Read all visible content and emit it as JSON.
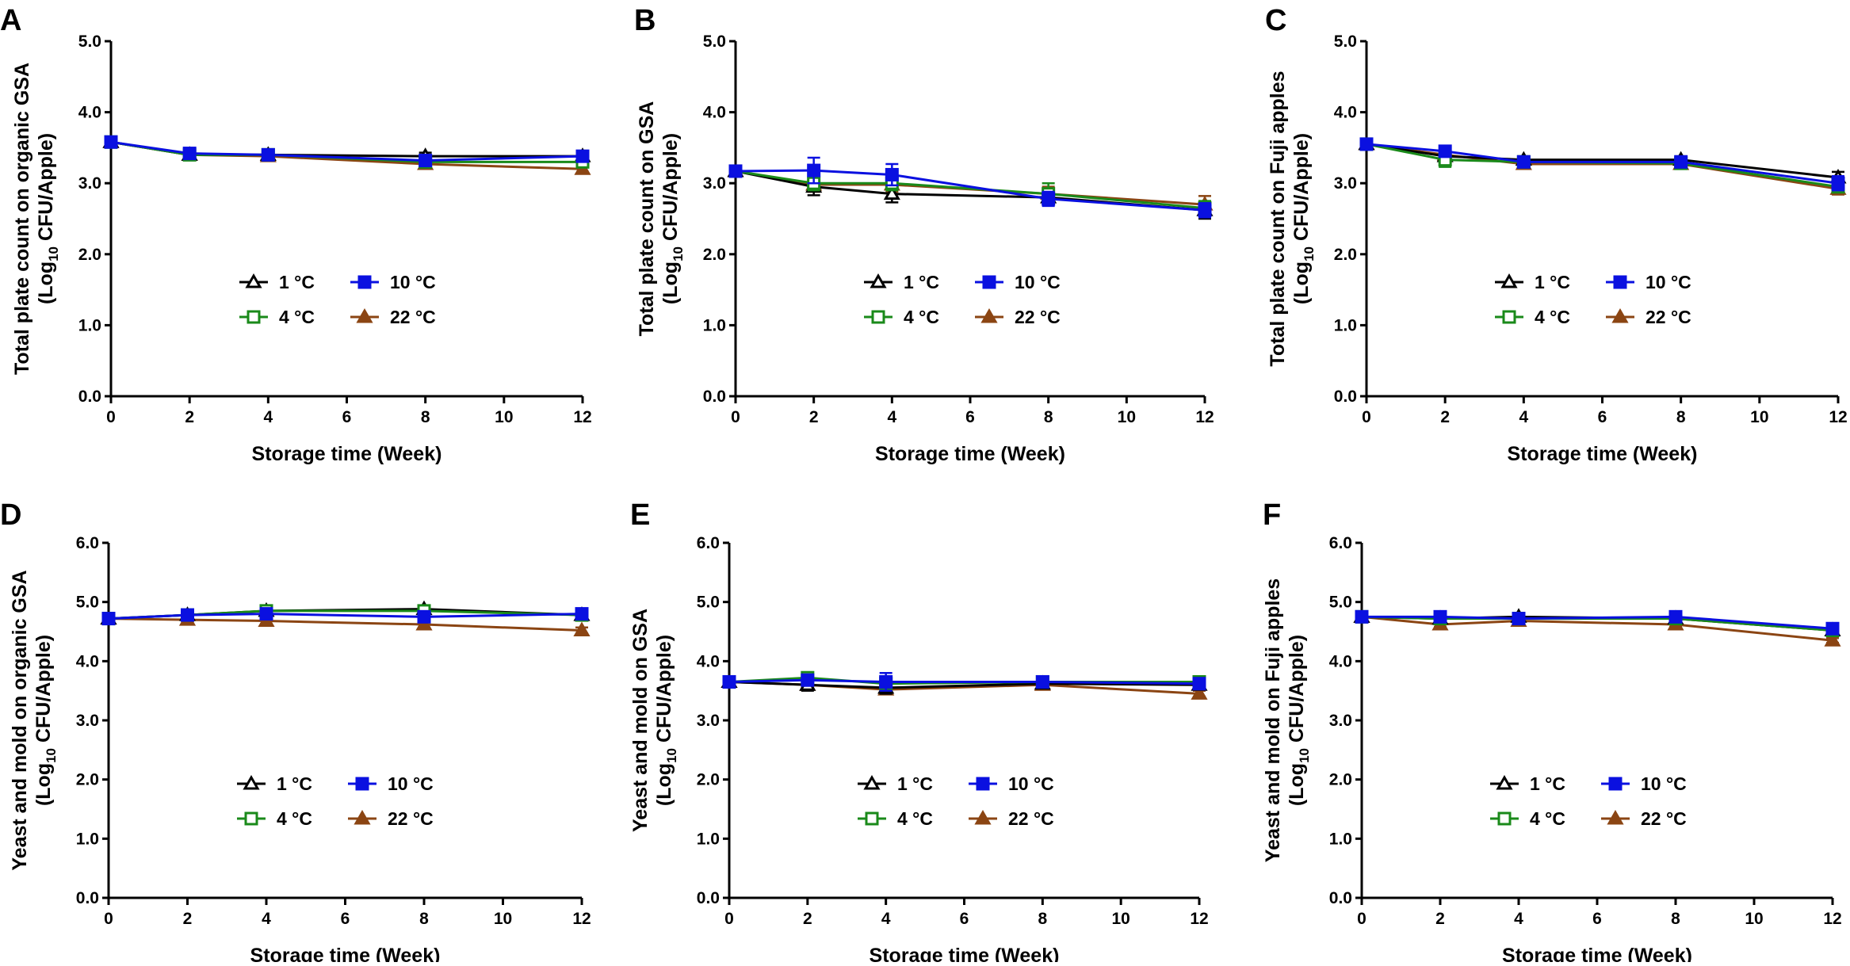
{
  "figure": {
    "colors": {
      "1 °C": "#000000",
      "4 °C": "#1a8a1a",
      "10 °C": "#0a10e0",
      "22 °C": "#8b4513"
    },
    "markers": {
      "1 °C": "triangle-open",
      "4 °C": "square-open",
      "10 °C": "square-filled",
      "22 °C": "triangle-filled"
    }
  },
  "chart_data": [
    {
      "panel": "A",
      "type": "line",
      "title": "",
      "xlabel": "Storage time (Week)",
      "ylabel_line1": "Total plate count on organic GSA",
      "ylabel_line2": "(Log",
      "ylabel_sub": "10",
      "ylabel_line2_rest": " CFU/Apple)",
      "x": [
        0,
        2,
        4,
        8,
        12
      ],
      "xticks": [
        "0",
        "2",
        "4",
        "6",
        "8",
        "10",
        "12"
      ],
      "xlim": [
        0,
        12
      ],
      "ylim": [
        0,
        5
      ],
      "yticks": [
        "0.0",
        "1.0",
        "2.0",
        "3.0",
        "4.0",
        "5.0"
      ],
      "legend": [
        "1 °C",
        "10 °C",
        "4 °C",
        "22 °C"
      ],
      "series": [
        {
          "name": "1 °C",
          "values": [
            3.58,
            3.4,
            3.4,
            3.38,
            3.38
          ],
          "err": [
            0.05,
            0.05,
            0.05,
            0.05,
            0.04
          ]
        },
        {
          "name": "4 °C",
          "values": [
            3.58,
            3.4,
            3.4,
            3.3,
            3.3
          ],
          "err": [
            0.05,
            0.05,
            0.05,
            0.05,
            0.05
          ]
        },
        {
          "name": "10 °C",
          "values": [
            3.58,
            3.42,
            3.4,
            3.32,
            3.38
          ],
          "err": [
            0.05,
            0.05,
            0.05,
            0.05,
            0.05
          ]
        },
        {
          "name": "22 °C",
          "values": [
            3.58,
            3.4,
            3.38,
            3.27,
            3.2
          ],
          "err": [
            0.05,
            0.05,
            0.05,
            0.05,
            0.05
          ]
        }
      ]
    },
    {
      "panel": "B",
      "type": "line",
      "title": "",
      "xlabel": "Storage time (Week)",
      "ylabel_line1": "Total plate count on GSA",
      "ylabel_line2": "(Log",
      "ylabel_sub": "10",
      "ylabel_line2_rest": " CFU/Apple)",
      "x": [
        0,
        2,
        4,
        8,
        12
      ],
      "xticks": [
        "0",
        "2",
        "4",
        "6",
        "8",
        "10",
        "12"
      ],
      "xlim": [
        0,
        12
      ],
      "ylim": [
        0,
        5
      ],
      "yticks": [
        "0.0",
        "1.0",
        "2.0",
        "3.0",
        "4.0",
        "5.0"
      ],
      "legend": [
        "1 °C",
        "10 °C",
        "4 °C",
        "22 °C"
      ],
      "series": [
        {
          "name": "1 °C",
          "values": [
            3.17,
            2.95,
            2.85,
            2.8,
            2.62
          ],
          "err": [
            0.05,
            0.12,
            0.12,
            0.1,
            0.12
          ]
        },
        {
          "name": "4 °C",
          "values": [
            3.17,
            3.0,
            3.0,
            2.85,
            2.65
          ],
          "err": [
            0.05,
            0.1,
            0.1,
            0.15,
            0.1
          ]
        },
        {
          "name": "10 °C",
          "values": [
            3.17,
            3.18,
            3.12,
            2.78,
            2.62
          ],
          "err": [
            0.05,
            0.18,
            0.15,
            0.1,
            0.1
          ]
        },
        {
          "name": "22 °C",
          "values": [
            3.17,
            2.98,
            2.98,
            2.85,
            2.7
          ],
          "err": [
            0.05,
            0.1,
            0.1,
            0.1,
            0.12
          ]
        }
      ]
    },
    {
      "panel": "C",
      "type": "line",
      "title": "",
      "xlabel": "Storage time (Week)",
      "ylabel_line1": "Total plate count on Fuji apples",
      "ylabel_line2": "(Log",
      "ylabel_sub": "10",
      "ylabel_line2_rest": " CFU/Apple)",
      "x": [
        0,
        2,
        4,
        8,
        12
      ],
      "xticks": [
        "0",
        "2",
        "4",
        "6",
        "8",
        "10",
        "12"
      ],
      "xlim": [
        0,
        12
      ],
      "ylim": [
        0,
        5
      ],
      "yticks": [
        "0.0",
        "1.0",
        "2.0",
        "3.0",
        "4.0",
        "5.0"
      ],
      "legend": [
        "1 °C",
        "10 °C",
        "4 °C",
        "22 °C"
      ],
      "series": [
        {
          "name": "1 °C",
          "values": [
            3.55,
            3.38,
            3.33,
            3.33,
            3.08
          ],
          "err": [
            0.05,
            0.05,
            0.05,
            0.05,
            0.08
          ]
        },
        {
          "name": "4 °C",
          "values": [
            3.55,
            3.33,
            3.3,
            3.28,
            2.95
          ],
          "err": [
            0.05,
            0.1,
            0.05,
            0.08,
            0.08
          ]
        },
        {
          "name": "10 °C",
          "values": [
            3.55,
            3.45,
            3.3,
            3.3,
            3.0
          ],
          "err": [
            0.05,
            0.05,
            0.05,
            0.05,
            0.1
          ]
        },
        {
          "name": "22 °C",
          "values": [
            3.55,
            3.4,
            3.27,
            3.27,
            2.92
          ],
          "err": [
            0.05,
            0.05,
            0.05,
            0.05,
            0.08
          ]
        }
      ]
    },
    {
      "panel": "D",
      "type": "line",
      "title": "",
      "xlabel": "Storage time (Week)",
      "ylabel_line1": "Yeast and mold on organic GSA",
      "ylabel_line2": "(Log",
      "ylabel_sub": "10",
      "ylabel_line2_rest": " CFU/Apple)",
      "x": [
        0,
        2,
        4,
        8,
        12
      ],
      "xticks": [
        "0",
        "2",
        "4",
        "6",
        "8",
        "10",
        "12"
      ],
      "xlim": [
        0,
        12
      ],
      "ylim": [
        0,
        6
      ],
      "yticks": [
        "0.0",
        "1.0",
        "2.0",
        "3.0",
        "4.0",
        "5.0",
        "6.0"
      ],
      "legend": [
        "1 °C",
        "10 °C",
        "4 °C",
        "22 °C"
      ],
      "series": [
        {
          "name": "1 °C",
          "values": [
            4.72,
            4.78,
            4.85,
            4.88,
            4.78
          ],
          "err": [
            0.05,
            0.05,
            0.05,
            0.05,
            0.05
          ]
        },
        {
          "name": "4 °C",
          "values": [
            4.72,
            4.78,
            4.85,
            4.85,
            4.78
          ],
          "err": [
            0.05,
            0.05,
            0.05,
            0.05,
            0.05
          ]
        },
        {
          "name": "10 °C",
          "values": [
            4.72,
            4.78,
            4.8,
            4.75,
            4.8
          ],
          "err": [
            0.05,
            0.05,
            0.05,
            0.05,
            0.05
          ]
        },
        {
          "name": "22 °C",
          "values": [
            4.72,
            4.7,
            4.68,
            4.62,
            4.52
          ],
          "err": [
            0.05,
            0.05,
            0.05,
            0.05,
            0.05
          ]
        }
      ]
    },
    {
      "panel": "E",
      "type": "line",
      "title": "",
      "xlabel": "Storage time (Week)",
      "ylabel_line1": "Yeast and mold on GSA",
      "ylabel_line2": "(Log",
      "ylabel_sub": "10",
      "ylabel_line2_rest": " CFU/Apple)",
      "x": [
        0,
        2,
        4,
        8,
        12
      ],
      "xticks": [
        "0",
        "2",
        "4",
        "6",
        "8",
        "10",
        "12"
      ],
      "xlim": [
        0,
        12
      ],
      "ylim": [
        0,
        6
      ],
      "yticks": [
        "0.0",
        "1.0",
        "2.0",
        "3.0",
        "4.0",
        "5.0",
        "6.0"
      ],
      "legend": [
        "1 °C",
        "10 °C",
        "4 °C",
        "22 °C"
      ],
      "series": [
        {
          "name": "1 °C",
          "values": [
            3.65,
            3.6,
            3.55,
            3.62,
            3.6
          ],
          "err": [
            0.05,
            0.1,
            0.1,
            0.05,
            0.05
          ]
        },
        {
          "name": "4 °C",
          "values": [
            3.65,
            3.72,
            3.62,
            3.65,
            3.65
          ],
          "err": [
            0.05,
            0.08,
            0.1,
            0.05,
            0.05
          ]
        },
        {
          "name": "10 °C",
          "values": [
            3.65,
            3.68,
            3.65,
            3.65,
            3.62
          ],
          "err": [
            0.05,
            0.08,
            0.15,
            0.05,
            0.05
          ]
        },
        {
          "name": "22 °C",
          "values": [
            3.65,
            3.6,
            3.52,
            3.6,
            3.45
          ],
          "err": [
            0.05,
            0.05,
            0.05,
            0.05,
            0.05
          ]
        }
      ]
    },
    {
      "panel": "F",
      "type": "line",
      "title": "",
      "xlabel": "Storage time (Week)",
      "ylabel_line1": "Yeast and mold on Fuji apples",
      "ylabel_line2": "(Log",
      "ylabel_sub": "10",
      "ylabel_line2_rest": " CFU/Apple)",
      "x": [
        0,
        2,
        4,
        8,
        12
      ],
      "xticks": [
        "0",
        "2",
        "4",
        "6",
        "8",
        "10",
        "12"
      ],
      "xlim": [
        0,
        12
      ],
      "ylim": [
        0,
        6
      ],
      "yticks": [
        "0.0",
        "1.0",
        "2.0",
        "3.0",
        "4.0",
        "5.0",
        "6.0"
      ],
      "legend": [
        "1 °C",
        "10 °C",
        "4 °C",
        "22 °C"
      ],
      "series": [
        {
          "name": "1 °C",
          "values": [
            4.75,
            4.72,
            4.75,
            4.72,
            4.52
          ],
          "err": [
            0.04,
            0.04,
            0.04,
            0.04,
            0.04
          ]
        },
        {
          "name": "4 °C",
          "values": [
            4.75,
            4.72,
            4.72,
            4.72,
            4.52
          ],
          "err": [
            0.04,
            0.04,
            0.04,
            0.04,
            0.04
          ]
        },
        {
          "name": "10 °C",
          "values": [
            4.75,
            4.75,
            4.72,
            4.75,
            4.55
          ],
          "err": [
            0.04,
            0.04,
            0.04,
            0.04,
            0.04
          ]
        },
        {
          "name": "22 °C",
          "values": [
            4.75,
            4.62,
            4.68,
            4.62,
            4.35
          ],
          "err": [
            0.04,
            0.04,
            0.04,
            0.04,
            0.04
          ]
        }
      ]
    }
  ]
}
